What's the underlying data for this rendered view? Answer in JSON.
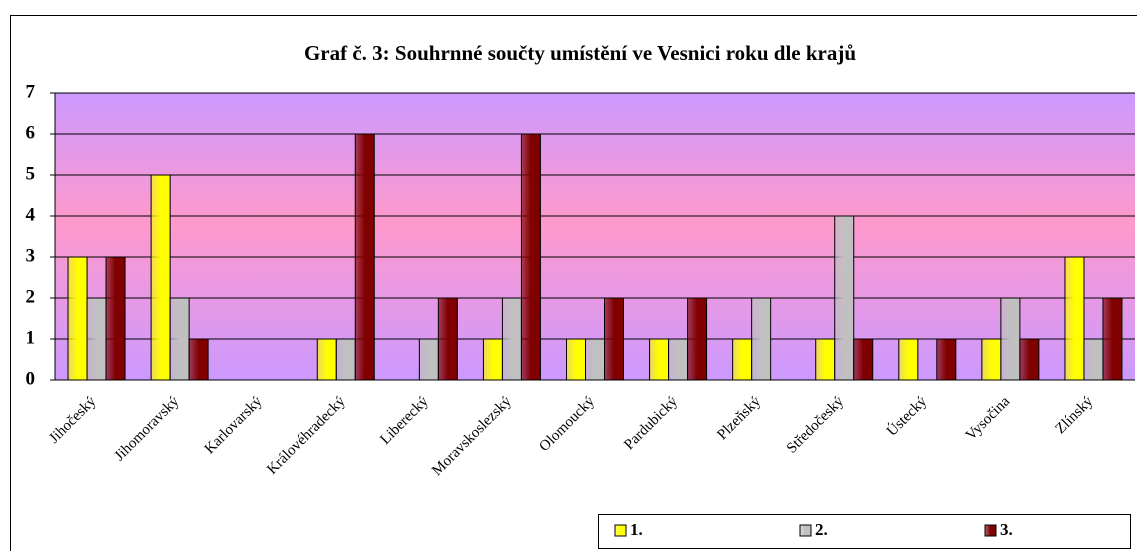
{
  "chart_data": {
    "type": "bar",
    "title": "Graf č. 3: Souhrnné součty umístění ve Vesnici roku dle krajů",
    "categories": [
      "Jihočeský",
      "Jihomoravský",
      "Karlovarský",
      "Královéhradecký",
      "Liberecký",
      "Moravskoslezský",
      "Olomoucký",
      "Pardubický",
      "Plzeňský",
      "Středočeský",
      "Ústecký",
      "Vysočina",
      "Zlínský"
    ],
    "series": [
      {
        "name": "1.",
        "color": "#ffff00",
        "values": [
          3,
          5,
          0,
          1,
          0,
          1,
          1,
          1,
          1,
          1,
          1,
          1,
          3
        ]
      },
      {
        "name": "2.",
        "color": "#c0c0c0",
        "values": [
          2,
          2,
          0,
          1,
          1,
          2,
          1,
          1,
          2,
          4,
          0,
          2,
          1
        ]
      },
      {
        "name": "3.",
        "color": "#800000",
        "values": [
          3,
          1,
          0,
          6,
          2,
          6,
          2,
          2,
          0,
          1,
          1,
          1,
          2
        ]
      }
    ],
    "ylim": [
      0,
      7
    ],
    "yticks": [
      0,
      1,
      2,
      3,
      4,
      5,
      6,
      7
    ],
    "grid": true,
    "legend": "bottom-right"
  }
}
